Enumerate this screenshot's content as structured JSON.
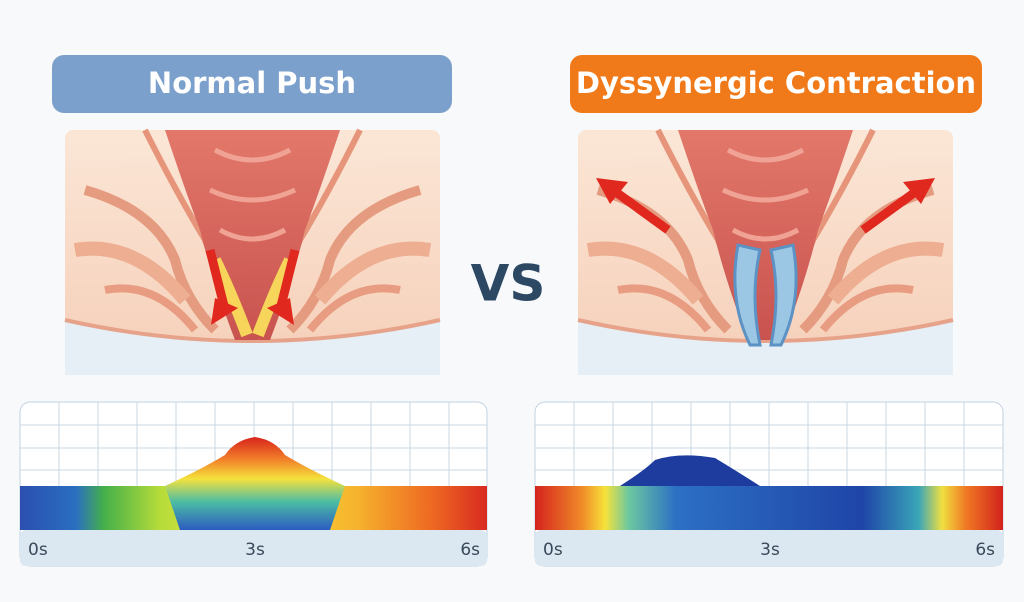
{
  "left": {
    "title": "Normal Push",
    "time_labels": [
      "0s",
      "3s",
      "6s"
    ]
  },
  "vs": "VS",
  "right": {
    "title": "Dyssynergic Contraction",
    "time_labels": [
      "0s",
      "3s",
      "6s"
    ]
  }
}
